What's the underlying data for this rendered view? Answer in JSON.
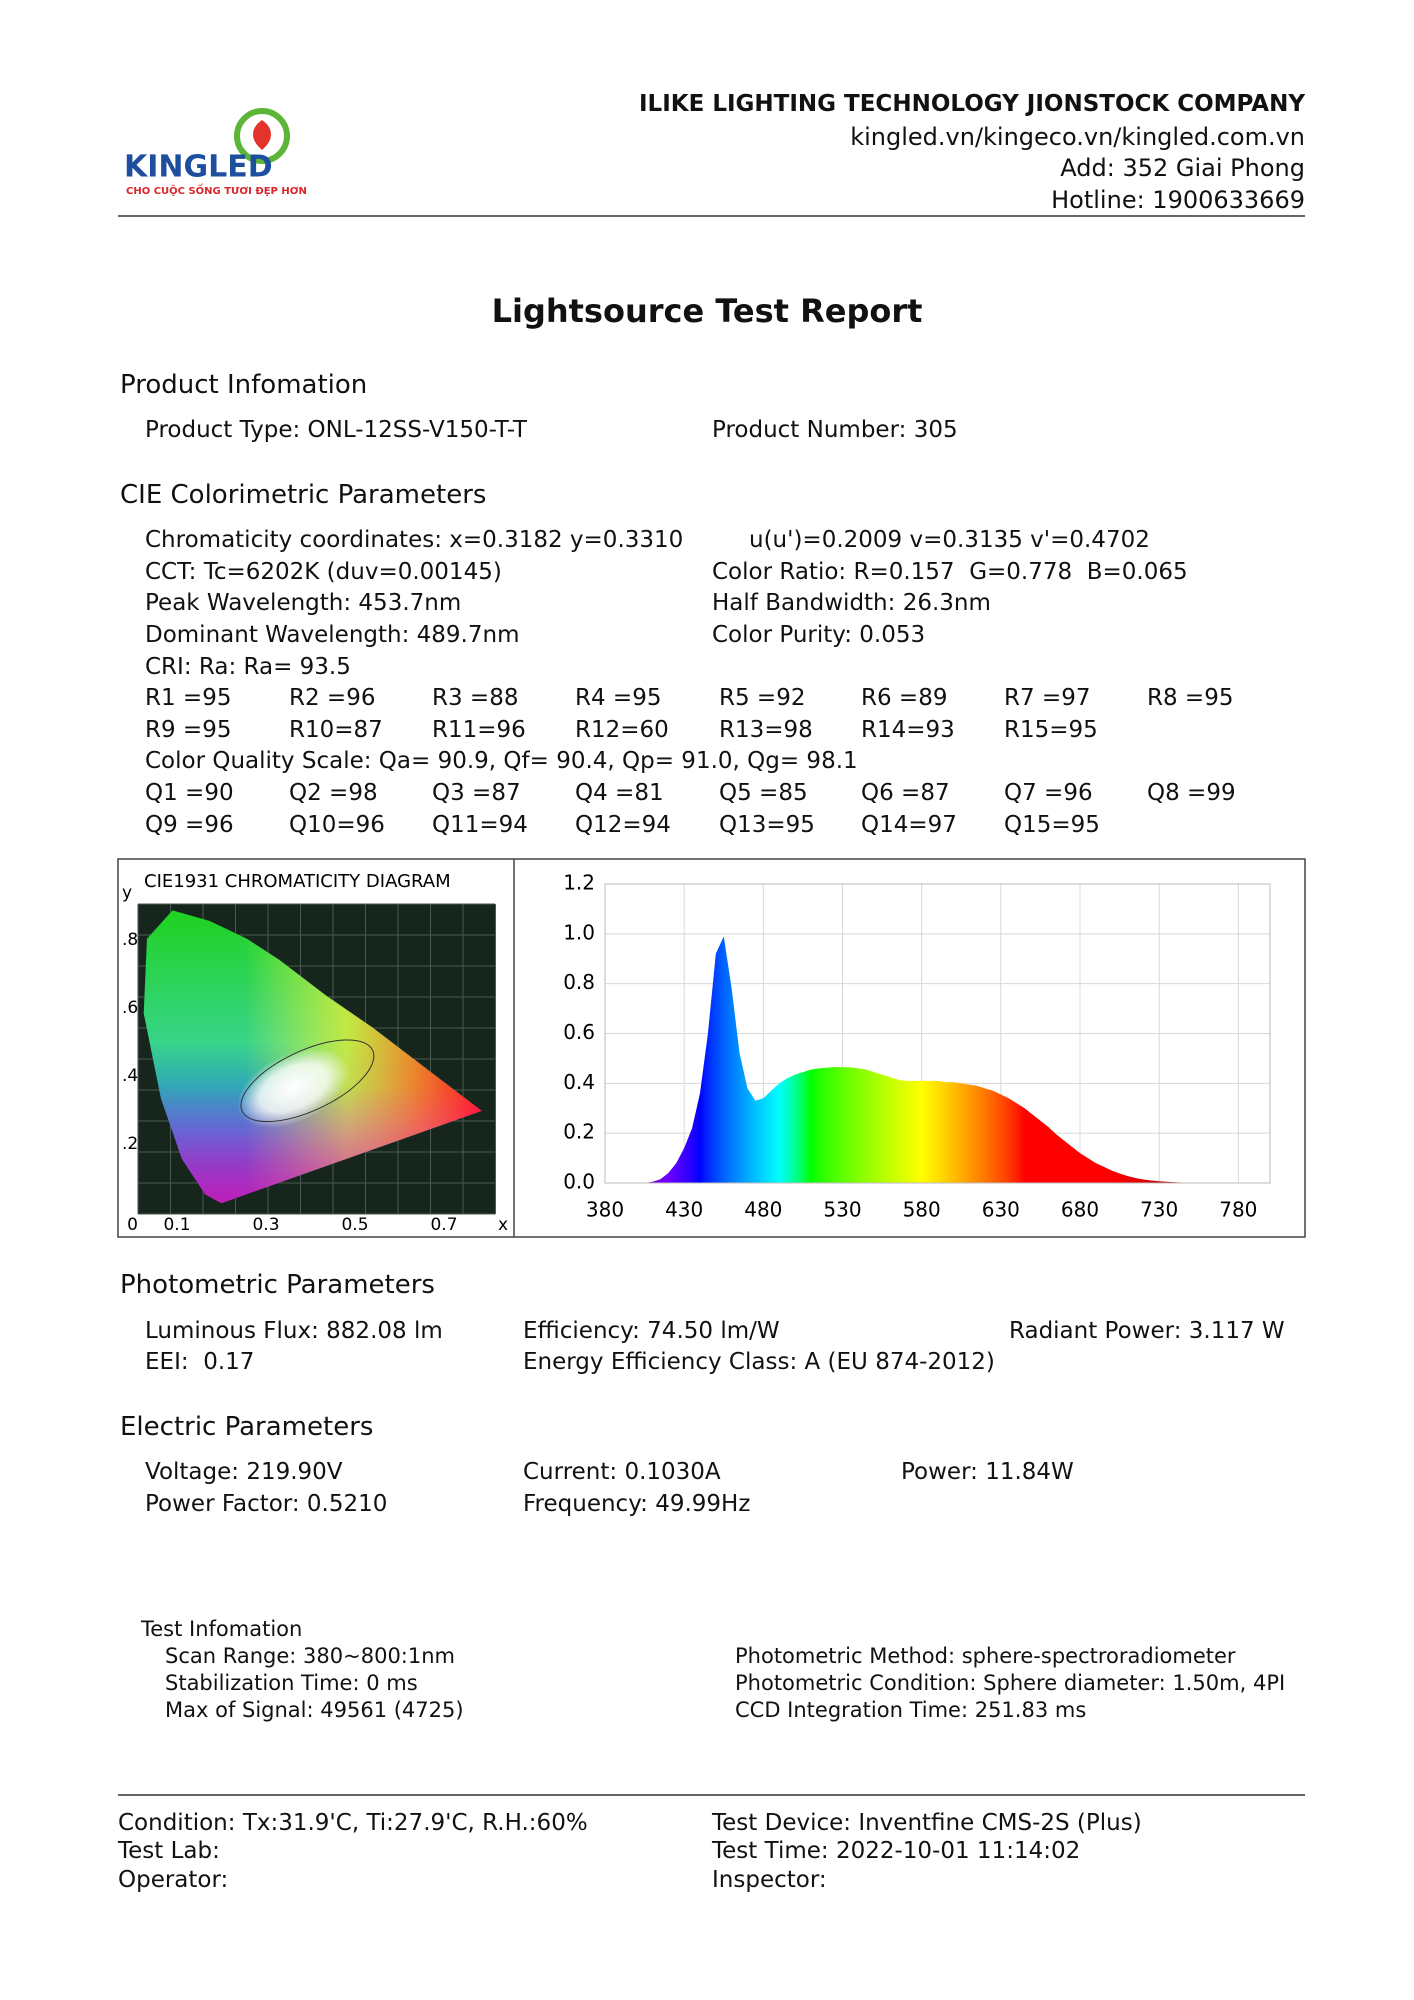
{
  "header": {
    "logo": {
      "name": "KINGLED",
      "tagline": "CHO CUỘC SỐNG TƯƠI ĐẸP HƠN"
    },
    "company": "ILIKE LIGHTING TECHNOLOGY JIONSTOCK COMPANY",
    "website": "kingled.vn/kingeco.vn/kingled.com.vn",
    "address": "Add: 352 Giai Phong",
    "hotline": "Hotline: 1900633669"
  },
  "title": "Lightsource Test Report",
  "product": {
    "heading": "Product Infomation",
    "type": "Product Type: ONL-12SS-V150-T-T",
    "number": "Product Number: 305"
  },
  "cie": {
    "heading": "CIE Colorimetric Parameters",
    "chromaticity": "Chromaticity coordinates: x=0.3182 y=0.3310",
    "uv": "u(u')=0.2009 v=0.3135 v'=0.4702",
    "cct": "CCT: Tc=6202K (duv=0.00145)",
    "color_ratio": "Color Ratio: R=0.157  G=0.778  B=0.065",
    "peak": "Peak Wavelength: 453.7nm",
    "half_bandwidth": "Half Bandwidth: 26.3nm",
    "dominant": "Dominant Wavelength: 489.7nm",
    "purity": "Color Purity: 0.053",
    "cri": "CRI: Ra: Ra= 93.5",
    "r_rows": [
      [
        "R1 =95",
        "R2 =96",
        "R3 =88",
        "R4 =95",
        "R5 =92",
        "R6 =89",
        "R7 =97",
        "R8 =95"
      ],
      [
        "R9 =95",
        "R10=87",
        "R11=96",
        "R12=60",
        "R13=98",
        "R14=93",
        "R15=95"
      ]
    ],
    "cqs": "Color Quality Scale: Qa= 90.9, Qf= 90.4, Qp= 91.0, Qg= 98.1",
    "q_rows": [
      [
        "Q1 =90",
        "Q2 =98",
        "Q3 =87",
        "Q4 =81",
        "Q5 =85",
        "Q6 =87",
        "Q7 =96",
        "Q8 =99"
      ],
      [
        "Q9 =96",
        "Q10=96",
        "Q11=94",
        "Q12=94",
        "Q13=95",
        "Q14=97",
        "Q15=95"
      ]
    ]
  },
  "chart_data": [
    {
      "type": "chromaticity",
      "title": "CIE1931 CHROMATICITY DIAGRAM",
      "x_label": "x",
      "y_label": "y",
      "xlim": [
        0,
        0.8
      ],
      "ylim": [
        0,
        0.9
      ],
      "xticks": [
        0,
        0.1,
        0.3,
        0.5,
        0.7
      ],
      "yticks": [
        {
          "value": 0.2,
          "label": ".2"
        },
        {
          "value": 0.4,
          "label": ".4"
        },
        {
          "value": 0.6,
          "label": ".6"
        },
        {
          "value": 0.8,
          "label": ".8"
        }
      ]
    },
    {
      "type": "area",
      "x": [
        380,
        385,
        390,
        395,
        400,
        405,
        410,
        415,
        420,
        425,
        430,
        435,
        440,
        445,
        450,
        455,
        460,
        465,
        470,
        475,
        480,
        485,
        490,
        495,
        500,
        505,
        510,
        515,
        520,
        525,
        530,
        535,
        540,
        545,
        550,
        555,
        560,
        565,
        570,
        575,
        580,
        585,
        590,
        595,
        600,
        605,
        610,
        615,
        620,
        625,
        630,
        635,
        640,
        645,
        650,
        655,
        660,
        665,
        670,
        675,
        680,
        685,
        690,
        695,
        700,
        705,
        710,
        715,
        720,
        725,
        730,
        735,
        740,
        745,
        750,
        755,
        760,
        770,
        780,
        790,
        800
      ],
      "values": [
        0,
        0,
        0,
        0,
        0,
        0,
        0.005,
        0.015,
        0.04,
        0.08,
        0.14,
        0.22,
        0.36,
        0.6,
        0.92,
        0.99,
        0.78,
        0.52,
        0.38,
        0.33,
        0.34,
        0.37,
        0.4,
        0.42,
        0.435,
        0.445,
        0.455,
        0.46,
        0.463,
        0.465,
        0.465,
        0.464,
        0.46,
        0.455,
        0.445,
        0.435,
        0.425,
        0.415,
        0.41,
        0.41,
        0.41,
        0.41,
        0.41,
        0.405,
        0.405,
        0.4,
        0.395,
        0.39,
        0.38,
        0.37,
        0.355,
        0.34,
        0.32,
        0.3,
        0.275,
        0.25,
        0.225,
        0.195,
        0.17,
        0.145,
        0.12,
        0.1,
        0.08,
        0.065,
        0.05,
        0.038,
        0.028,
        0.02,
        0.014,
        0.01,
        0.007,
        0.005,
        0.003,
        0.002,
        0.001,
        0.001,
        0,
        0,
        0,
        0,
        0
      ],
      "xlim": [
        380,
        800
      ],
      "ylim": [
        0,
        1.2
      ],
      "xticks": [
        380,
        430,
        480,
        530,
        580,
        630,
        680,
        730,
        780
      ],
      "yticks": [
        {
          "value": 0,
          "label": "0.0"
        },
        0.2,
        0.4,
        0.6,
        0.8,
        {
          "value": 1,
          "label": "1.0"
        },
        1.2
      ],
      "grid": true
    }
  ],
  "photometric": {
    "heading": "Photometric Parameters",
    "items": [
      [
        "Luminous Flux: 882.08 lm",
        "Efficiency: 74.50 lm/W",
        "Radiant Power: 3.117 W"
      ],
      [
        "EEI:  0.17",
        "Energy Efficiency Class: A (EU 874-2012)"
      ]
    ]
  },
  "electric": {
    "heading": "Electric Parameters",
    "items": [
      [
        "Voltage: 219.90V",
        "Current: 0.1030A",
        "Power: 11.84W"
      ],
      [
        "Power Factor: 0.5210",
        "Frequency: 49.99Hz"
      ]
    ]
  },
  "test_info": {
    "heading": "Test Infomation",
    "left": [
      "Scan Range: 380~800:1nm",
      "Stabilization Time: 0 ms",
      "Max of Signal: 49561 (4725)"
    ],
    "right": [
      "Photometric Method: sphere-spectroradiometer",
      "Photometric Condition: Sphere diameter: 1.50m, 4PI",
      "CCD Integration Time: 251.83 ms"
    ]
  },
  "footer": {
    "left": [
      "Condition: Tx:31.9'C, Ti:27.9'C, R.H.:60%",
      "Test Lab:",
      "Operator:"
    ],
    "right": [
      "Test Device: Inventfine CMS-2S (Plus)",
      "Test Time: 2022-10-01 11:14:02",
      "Inspector:"
    ]
  }
}
